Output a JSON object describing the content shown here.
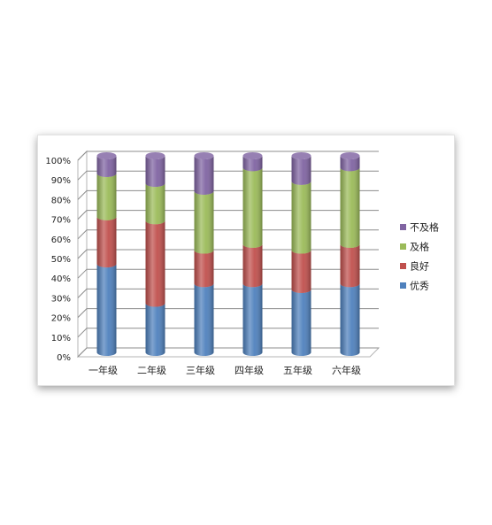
{
  "chart_data": {
    "type": "bar",
    "stacked": "percent",
    "style": "3d-cylinder",
    "categories": [
      "一年级",
      "二年级",
      "三年级",
      "四年级",
      "五年级",
      "六年级"
    ],
    "series": [
      {
        "name": "优秀",
        "color": "#4F81BD",
        "values": [
          45,
          25,
          35,
          35,
          32,
          35
        ]
      },
      {
        "name": "良好",
        "color": "#C0504D",
        "values": [
          24,
          42,
          17,
          20,
          20,
          20
        ]
      },
      {
        "name": "及格",
        "color": "#9BBB59",
        "values": [
          22,
          19,
          30,
          39,
          35,
          39
        ]
      },
      {
        "name": "不及格",
        "color": "#8064A2",
        "values": [
          9,
          14,
          18,
          6,
          13,
          6
        ]
      }
    ],
    "yticks": [
      "0%",
      "10%",
      "20%",
      "30%",
      "40%",
      "50%",
      "60%",
      "70%",
      "80%",
      "90%",
      "100%"
    ],
    "ylim": [
      0,
      100
    ],
    "grid": true,
    "legend": "right"
  }
}
